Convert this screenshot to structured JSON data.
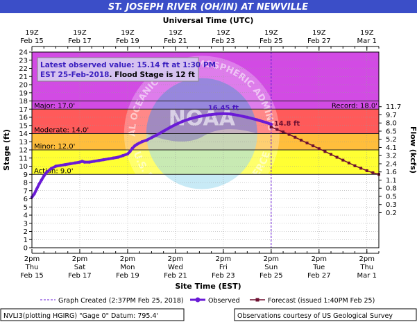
{
  "chart_data": {
    "type": "line",
    "title": "ST. JOSEPH RIVER (OH/IN) AT NEWVILLE",
    "top_axis_title": "Universal Time (UTC)",
    "bottom_axis_title": "Site Time (EST)",
    "ylabel_left": "Stage (ft)",
    "ylabel_right": "Flow (kcfs)",
    "ylim": [
      0,
      24
    ],
    "x_range_days": [
      0,
      14.5
    ],
    "x_axis_note": "x values are days after 2pm EST Feb 15 2018",
    "left_ticks": [
      0,
      1,
      2,
      3,
      4,
      5,
      6,
      7,
      8,
      9,
      10,
      11,
      12,
      13,
      14,
      15,
      16,
      17,
      18,
      19,
      20,
      21,
      22,
      23,
      24
    ],
    "top_ticks": [
      {
        "day": 0,
        "line1": "19Z",
        "line2": "Feb 15"
      },
      {
        "day": 2,
        "line1": "19Z",
        "line2": "Feb 17"
      },
      {
        "day": 4,
        "line1": "19Z",
        "line2": "Feb 19"
      },
      {
        "day": 6,
        "line1": "19Z",
        "line2": "Feb 21"
      },
      {
        "day": 8,
        "line1": "19Z",
        "line2": "Feb 23"
      },
      {
        "day": 10,
        "line1": "19Z",
        "line2": "Feb 25"
      },
      {
        "day": 12,
        "line1": "19Z",
        "line2": "Feb 27"
      },
      {
        "day": 14,
        "line1": "19Z",
        "line2": "Mar 1"
      }
    ],
    "bottom_ticks": [
      {
        "day": 0,
        "line1": "2pm",
        "line2": "Thu",
        "line3": "Feb 15"
      },
      {
        "day": 2,
        "line1": "2pm",
        "line2": "Sat",
        "line3": "Feb 17"
      },
      {
        "day": 4,
        "line1": "2pm",
        "line2": "Mon",
        "line3": "Feb 19"
      },
      {
        "day": 6,
        "line1": "2pm",
        "line2": "Wed",
        "line3": "Feb 21"
      },
      {
        "day": 8,
        "line1": "2pm",
        "line2": "Fri",
        "line3": "Feb 23"
      },
      {
        "day": 10,
        "line1": "2pm",
        "line2": "Sun",
        "line3": "Feb 25"
      },
      {
        "day": 12,
        "line1": "2pm",
        "line2": "Tue",
        "line3": "Feb 27"
      },
      {
        "day": 14,
        "line1": "2pm",
        "line2": "Thu",
        "line3": "Mar 1"
      }
    ],
    "flow_ticks": [
      {
        "stage": 17.3,
        "label": "11.7"
      },
      {
        "stage": 16.3,
        "label": "9.7"
      },
      {
        "stage": 15.3,
        "label": "8.0"
      },
      {
        "stage": 14.3,
        "label": "6.5"
      },
      {
        "stage": 13.3,
        "label": "5.2"
      },
      {
        "stage": 12.3,
        "label": "4.1"
      },
      {
        "stage": 11.3,
        "label": "3.2"
      },
      {
        "stage": 10.3,
        "label": "2.4"
      },
      {
        "stage": 9.3,
        "label": "1.6"
      },
      {
        "stage": 8.3,
        "label": "1.1"
      },
      {
        "stage": 7.3,
        "label": "0.8"
      },
      {
        "stage": 6.3,
        "label": "0.5"
      },
      {
        "stage": 5.3,
        "label": "0.3"
      },
      {
        "stage": 4.3,
        "label": "0.2"
      }
    ],
    "bands": [
      {
        "from": 0,
        "to": 9,
        "color": "#ffffff"
      },
      {
        "from": 9,
        "to": 12,
        "color": "#ffff33"
      },
      {
        "from": 12,
        "to": 14,
        "color": "#ffbe3c"
      },
      {
        "from": 14,
        "to": 17,
        "color": "#ff5a5a"
      },
      {
        "from": 17,
        "to": 24,
        "color": "#d24be4"
      }
    ],
    "thresholds": [
      {
        "name": "Action",
        "value": 9.0,
        "label": "Action: 9.0'"
      },
      {
        "name": "Minor",
        "value": 12.0,
        "label": "Minor: 12.0'"
      },
      {
        "name": "Moderate",
        "value": 14.0,
        "label": "Moderate: 14.0'"
      },
      {
        "name": "Major",
        "value": 17.0,
        "label": "Major: 17.0'"
      },
      {
        "name": "Record",
        "value": 18.0,
        "label": "Record: 18.0'"
      }
    ],
    "observed": {
      "name": "Observed",
      "color": "#6a1bd6",
      "x": [
        0.0,
        0.1,
        0.2,
        0.3,
        0.4,
        0.5,
        0.6,
        0.8,
        1.0,
        1.2,
        1.4,
        1.6,
        1.8,
        2.0,
        2.1,
        2.2,
        2.4,
        2.6,
        2.8,
        3.0,
        3.2,
        3.4,
        3.6,
        3.8,
        4.0,
        4.1,
        4.2,
        4.3,
        4.4,
        4.6,
        4.8,
        5.0,
        5.2,
        5.5,
        5.8,
        6.0,
        6.3,
        6.6,
        7.0,
        7.4,
        7.7,
        8.0,
        8.3,
        8.6,
        9.0,
        9.4,
        9.8,
        10.0
      ],
      "y": [
        6.2,
        6.6,
        7.2,
        7.8,
        8.3,
        8.8,
        9.2,
        9.7,
        10.0,
        10.1,
        10.2,
        10.3,
        10.4,
        10.5,
        10.6,
        10.5,
        10.5,
        10.6,
        10.7,
        10.8,
        10.9,
        11.0,
        11.1,
        11.3,
        11.5,
        11.8,
        12.2,
        12.5,
        12.7,
        13.0,
        13.2,
        13.5,
        13.8,
        14.3,
        14.8,
        15.1,
        15.5,
        15.8,
        16.1,
        16.3,
        16.4,
        16.45,
        16.4,
        16.25,
        16.0,
        15.7,
        15.35,
        15.14
      ]
    },
    "forecast": {
      "name": "Forecast (issued 1:40PM Feb 25)",
      "color": "#6e1030",
      "x": [
        10.0,
        10.25,
        10.5,
        10.75,
        11.0,
        11.25,
        11.5,
        11.75,
        12.0,
        12.25,
        12.5,
        12.75,
        13.0,
        13.25,
        13.5,
        13.75,
        14.0,
        14.25,
        14.5
      ],
      "y": [
        14.8,
        14.5,
        14.2,
        13.9,
        13.55,
        13.2,
        12.85,
        12.5,
        12.15,
        11.8,
        11.45,
        11.1,
        10.75,
        10.4,
        10.05,
        9.75,
        9.45,
        9.2,
        9.0
      ]
    },
    "peak_label": {
      "x": 8.0,
      "y": 16.45,
      "text": "16.45 ft"
    },
    "forecast_start_label": {
      "x": 10.0,
      "y": 14.8,
      "text": "14.8 ft"
    },
    "graph_created_day": 10.0,
    "info_box": {
      "line1": "Latest observed value: 15.14 ft at 1:30 PM",
      "line2a": "EST 25-Feb-2018",
      "line2b": ". Flood Stage is 12 ft"
    },
    "legend": {
      "created": "Graph Created (2:37PM Feb 25, 2018)",
      "observed": "Observed",
      "forecast": "Forecast (issued 1:40PM Feb 25)"
    },
    "footer_left": "NVLI3(plotting HGIRG) \"Gage 0\" Datum: 795.4'",
    "footer_right": "Observations courtesy of US Geological Survey",
    "watermark": {
      "ring_text": "NATIONAL OCEANIC AND ATMOSPHERIC ADMINISTRATION",
      "bottom_text": "U.S. DEPARTMENT OF COMMERCE",
      "center_text": "NOAA"
    }
  }
}
